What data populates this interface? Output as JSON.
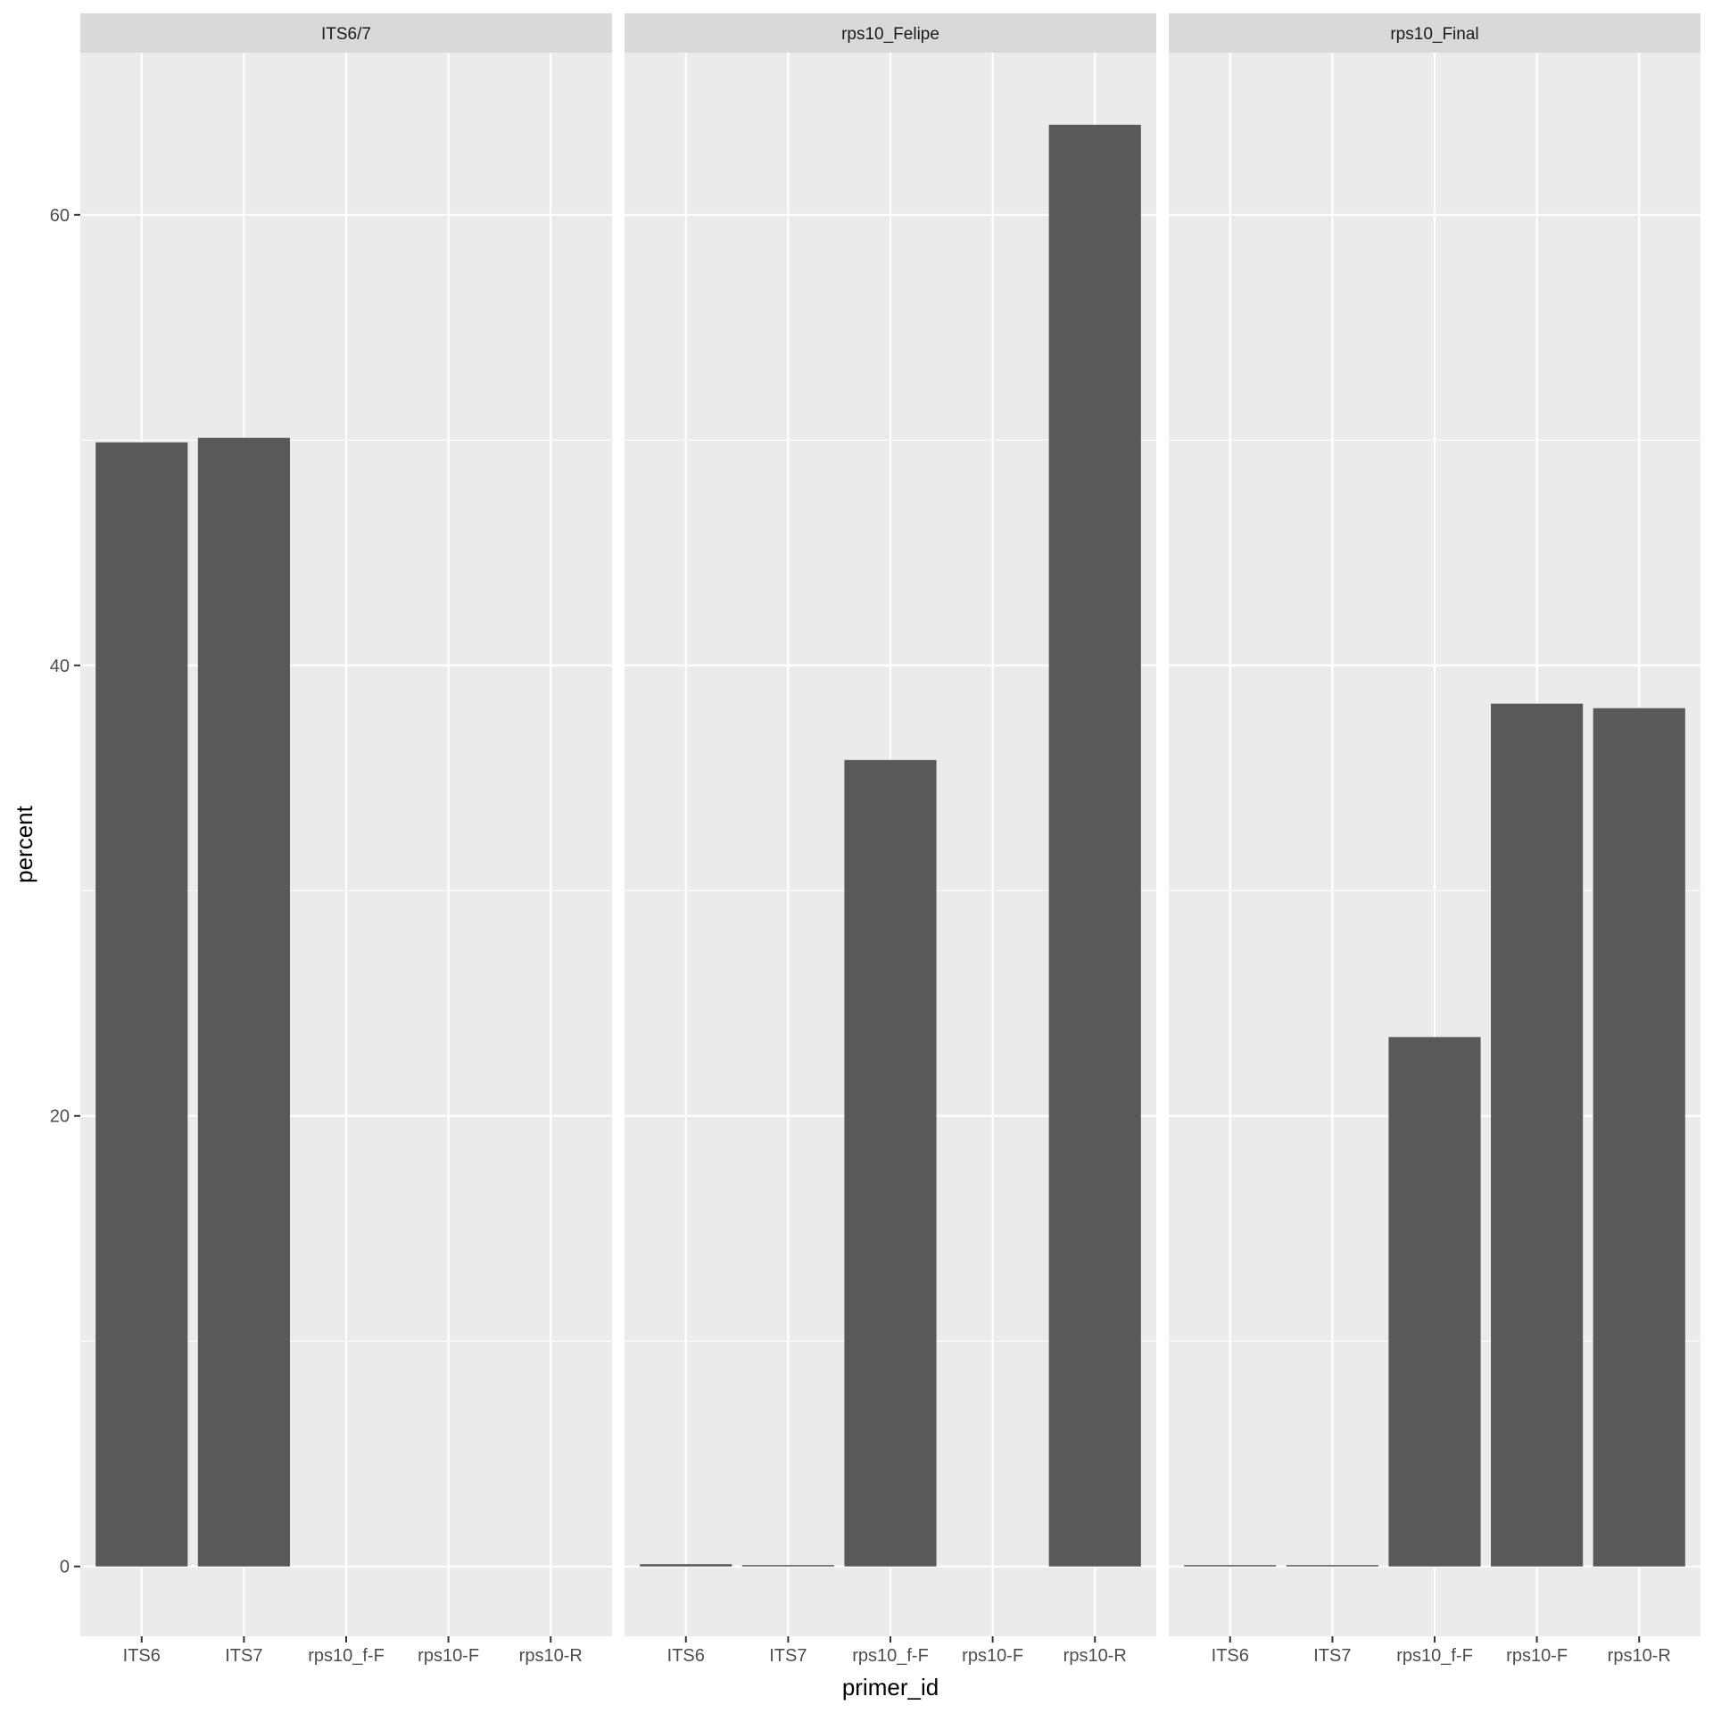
{
  "chart_data": {
    "type": "bar",
    "facet_variable_values": [
      "ITS6/7",
      "rps10_Felipe",
      "rps10_Final"
    ],
    "categories": [
      "ITS6",
      "ITS7",
      "rps10_f-F",
      "rps10-F",
      "rps10-R"
    ],
    "xlabel": "primer_id",
    "ylabel": "percent",
    "ylim": [
      -3.1,
      67.2
    ],
    "yticks": [
      0,
      20,
      40,
      60
    ],
    "grid": true,
    "facets": [
      {
        "label": "ITS6/7",
        "values": [
          49.9,
          50.1,
          0,
          0,
          0
        ]
      },
      {
        "label": "rps10_Felipe",
        "values": [
          0.1,
          0.05,
          35.8,
          0,
          64.0
        ]
      },
      {
        "label": "rps10_Final",
        "values": [
          0.05,
          0.05,
          23.5,
          38.3,
          38.1
        ]
      }
    ],
    "colors": {
      "bar": "#595959",
      "panel_bg": "#ebebeb",
      "strip_bg": "#d9d9d9",
      "grid": "#ffffff"
    }
  }
}
